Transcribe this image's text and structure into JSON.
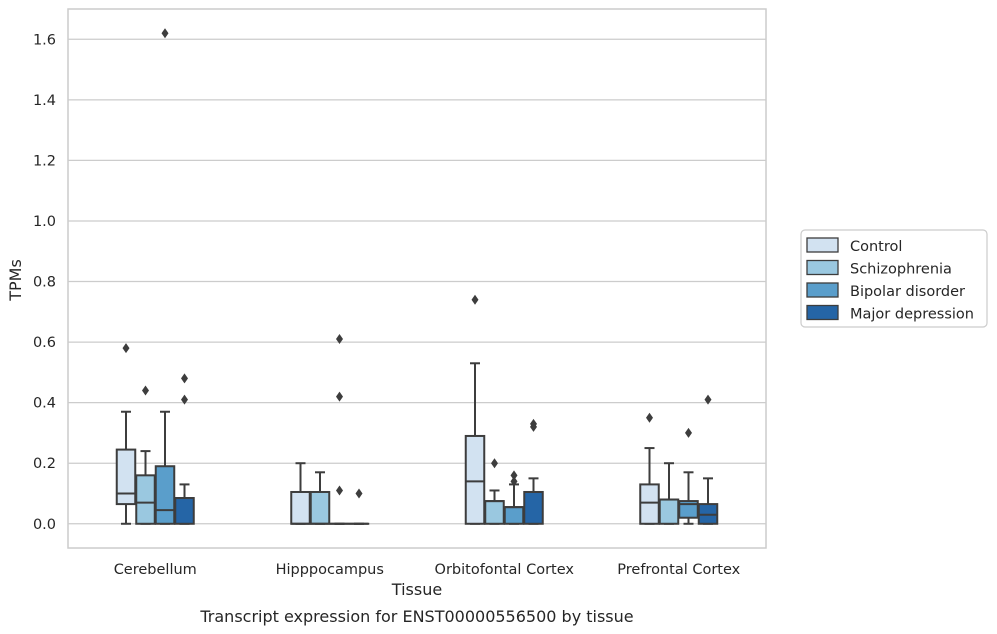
{
  "chart_data": {
    "type": "boxplot",
    "title": "Transcript expression for ENST00000556500 by tissue",
    "xlabel": "Tissue",
    "ylabel": "TPMs",
    "ylim": [
      -0.08,
      1.7
    ],
    "yticks": [
      "0.0",
      "0.2",
      "0.4",
      "0.6",
      "0.8",
      "1.0",
      "1.2",
      "1.4",
      "1.6"
    ],
    "grid": "horizontal",
    "legend_position": "right",
    "categories": [
      "Cerebellum",
      "Hipppocampus",
      "Orbitofontal Cortex",
      "Prefrontal Cortex"
    ],
    "series": [
      {
        "name": "Control",
        "color": "#d2e2f1",
        "boxes": [
          {
            "q1": 0.065,
            "median": 0.1,
            "q3": 0.245,
            "whisker_low": 0.0,
            "whisker_high": 0.37,
            "outliers": [
              0.58
            ]
          },
          {
            "q1": 0.0,
            "median": 0.0,
            "q3": 0.105,
            "whisker_low": 0.0,
            "whisker_high": 0.2,
            "outliers": []
          },
          {
            "q1": 0.0,
            "median": 0.14,
            "q3": 0.29,
            "whisker_low": 0.0,
            "whisker_high": 0.53,
            "outliers": [
              0.74
            ]
          },
          {
            "q1": 0.0,
            "median": 0.07,
            "q3": 0.13,
            "whisker_low": 0.0,
            "whisker_high": 0.25,
            "outliers": [
              0.35
            ]
          }
        ]
      },
      {
        "name": "Schizophrenia",
        "color": "#9ac8e0",
        "boxes": [
          {
            "q1": 0.0,
            "median": 0.07,
            "q3": 0.16,
            "whisker_low": 0.0,
            "whisker_high": 0.24,
            "outliers": [
              0.44
            ]
          },
          {
            "q1": 0.0,
            "median": 0.0,
            "q3": 0.105,
            "whisker_low": 0.0,
            "whisker_high": 0.17,
            "outliers": []
          },
          {
            "q1": 0.0,
            "median": 0.075,
            "q3": 0.075,
            "whisker_low": 0.0,
            "whisker_high": 0.11,
            "outliers": [
              0.2
            ]
          },
          {
            "q1": 0.0,
            "median": 0.08,
            "q3": 0.08,
            "whisker_low": 0.0,
            "whisker_high": 0.2,
            "outliers": []
          }
        ]
      },
      {
        "name": "Bipolar disorder",
        "color": "#5a9ecb",
        "boxes": [
          {
            "q1": 0.0,
            "median": 0.045,
            "q3": 0.19,
            "whisker_low": 0.0,
            "whisker_high": 0.37,
            "outliers": [
              1.62
            ]
          },
          {
            "q1": 0.0,
            "median": 0.0,
            "q3": 0.0,
            "whisker_low": 0.0,
            "whisker_high": 0.0,
            "outliers": [
              0.61,
              0.42,
              0.11
            ]
          },
          {
            "q1": 0.0,
            "median": 0.055,
            "q3": 0.055,
            "whisker_low": 0.0,
            "whisker_high": 0.13,
            "outliers": [
              0.16,
              0.14
            ]
          },
          {
            "q1": 0.02,
            "median": 0.065,
            "q3": 0.075,
            "whisker_low": 0.0,
            "whisker_high": 0.17,
            "outliers": [
              0.3
            ]
          }
        ]
      },
      {
        "name": "Major depression",
        "color": "#2565a6",
        "boxes": [
          {
            "q1": 0.0,
            "median": 0.085,
            "q3": 0.085,
            "whisker_low": 0.0,
            "whisker_high": 0.13,
            "outliers": [
              0.48,
              0.41
            ]
          },
          {
            "q1": 0.0,
            "median": 0.0,
            "q3": 0.0,
            "whisker_low": 0.0,
            "whisker_high": 0.0,
            "outliers": [
              0.1
            ]
          },
          {
            "q1": 0.0,
            "median": 0.105,
            "q3": 0.105,
            "whisker_low": 0.0,
            "whisker_high": 0.15,
            "outliers": [
              0.33,
              0.32
            ]
          },
          {
            "q1": 0.0,
            "median": 0.03,
            "q3": 0.065,
            "whisker_low": 0.0,
            "whisker_high": 0.15,
            "outliers": [
              0.41
            ]
          }
        ]
      }
    ]
  }
}
